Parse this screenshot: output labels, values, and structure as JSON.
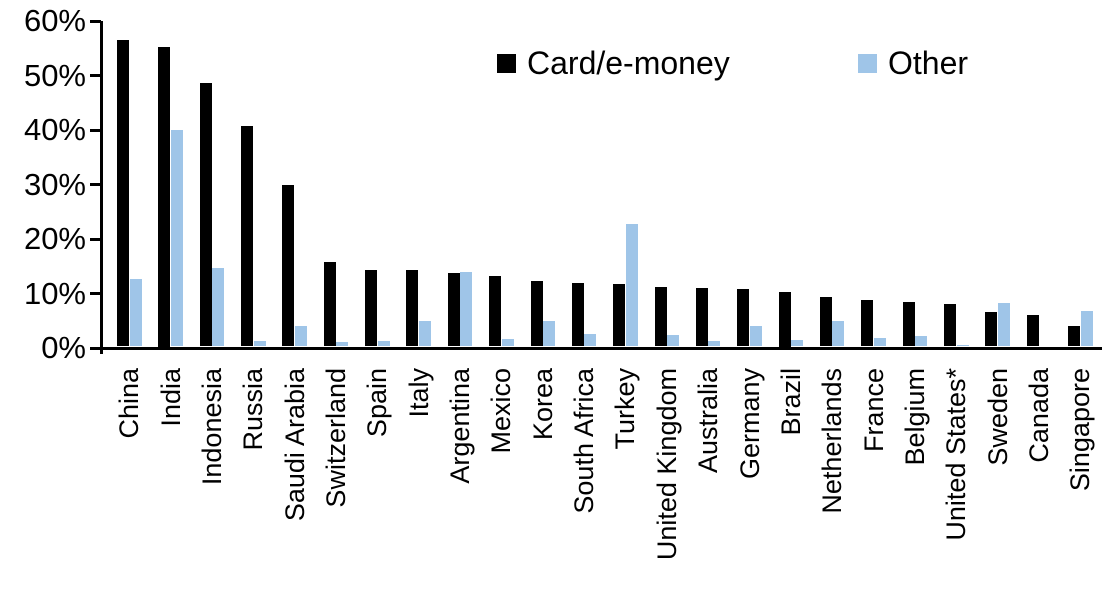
{
  "chart_data": {
    "type": "bar",
    "title": "",
    "xlabel": "",
    "ylabel": "",
    "ylim": [
      0,
      60
    ],
    "ytick_values": [
      0,
      10,
      20,
      30,
      40,
      50,
      60
    ],
    "ytick_labels": [
      "0%",
      "10%",
      "20%",
      "30%",
      "40%",
      "50%",
      "60%"
    ],
    "grid": false,
    "legend_position": "top-center",
    "categories": [
      "China",
      "India",
      "Indonesia",
      "Russia",
      "Saudi Arabia",
      "Switzerland",
      "Spain",
      "Italy",
      "Argentina",
      "Mexico",
      "Korea",
      "South Africa",
      "Turkey",
      "United Kingdom",
      "Australia",
      "Germany",
      "Brazil",
      "Netherlands",
      "France",
      "Belgium",
      "United States*",
      "Sweden",
      "Canada",
      "Singapore"
    ],
    "series": [
      {
        "name": "Card/e-money",
        "color": "#000000",
        "values": [
          56.2,
          55.0,
          48.4,
          40.5,
          29.7,
          15.5,
          14.1,
          14.0,
          13.4,
          12.9,
          12.1,
          11.7,
          11.5,
          11.0,
          10.8,
          10.6,
          10.0,
          9.1,
          8.6,
          8.2,
          7.8,
          6.4,
          5.7,
          3.8
        ]
      },
      {
        "name": "Other",
        "color": "#9FC5E8",
        "values": [
          12.3,
          39.7,
          14.4,
          1.0,
          3.8,
          0.8,
          1.0,
          4.6,
          13.7,
          1.4,
          4.6,
          2.3,
          22.4,
          2.2,
          1.0,
          3.8,
          1.2,
          4.7,
          1.5,
          1.9,
          0.3,
          8.0,
          0.0,
          6.5
        ]
      }
    ]
  }
}
